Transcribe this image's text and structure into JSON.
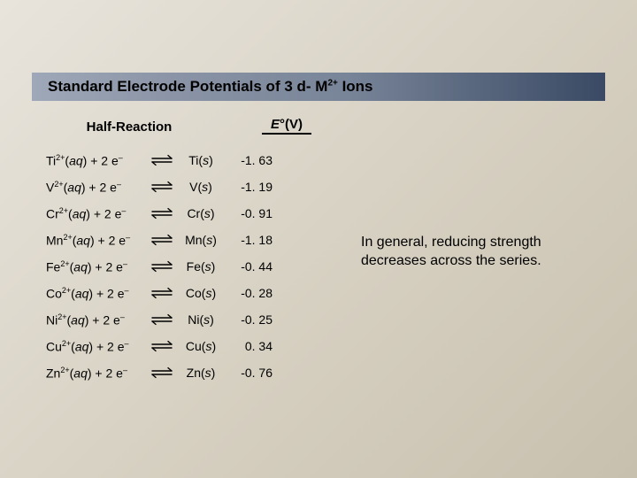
{
  "title": {
    "prefix": "Standard Electrode Potentials of 3 d- M",
    "sup": "2+",
    "suffix": " Ions"
  },
  "headers": {
    "half_reaction": "Half-Reaction",
    "e_label": "E",
    "e_degree": "°",
    "e_unit": "(V)"
  },
  "rows": [
    {
      "sym": "Ti",
      "val": "-1. 63"
    },
    {
      "sym": "V",
      "val": "-1. 19"
    },
    {
      "sym": "Cr",
      "val": "-0. 91"
    },
    {
      "sym": "Mn",
      "val": "-1. 18"
    },
    {
      "sym": "Fe",
      "val": "-0. 44"
    },
    {
      "sym": "Co",
      "val": "-0. 28"
    },
    {
      "sym": "Ni",
      "val": "-0. 25"
    },
    {
      "sym": "Cu",
      "val": " 0. 34"
    },
    {
      "sym": "Zn",
      "val": "-0. 76"
    }
  ],
  "note": "In general, reducing strength decreases across the series.",
  "labels": {
    "charge": "2+",
    "aq": "aq",
    "plus2e": " + 2 e",
    "minus": "–",
    "s": "s"
  },
  "style": {
    "arrow_stroke": "#000000",
    "arrow_stroke_width": 1.4
  }
}
